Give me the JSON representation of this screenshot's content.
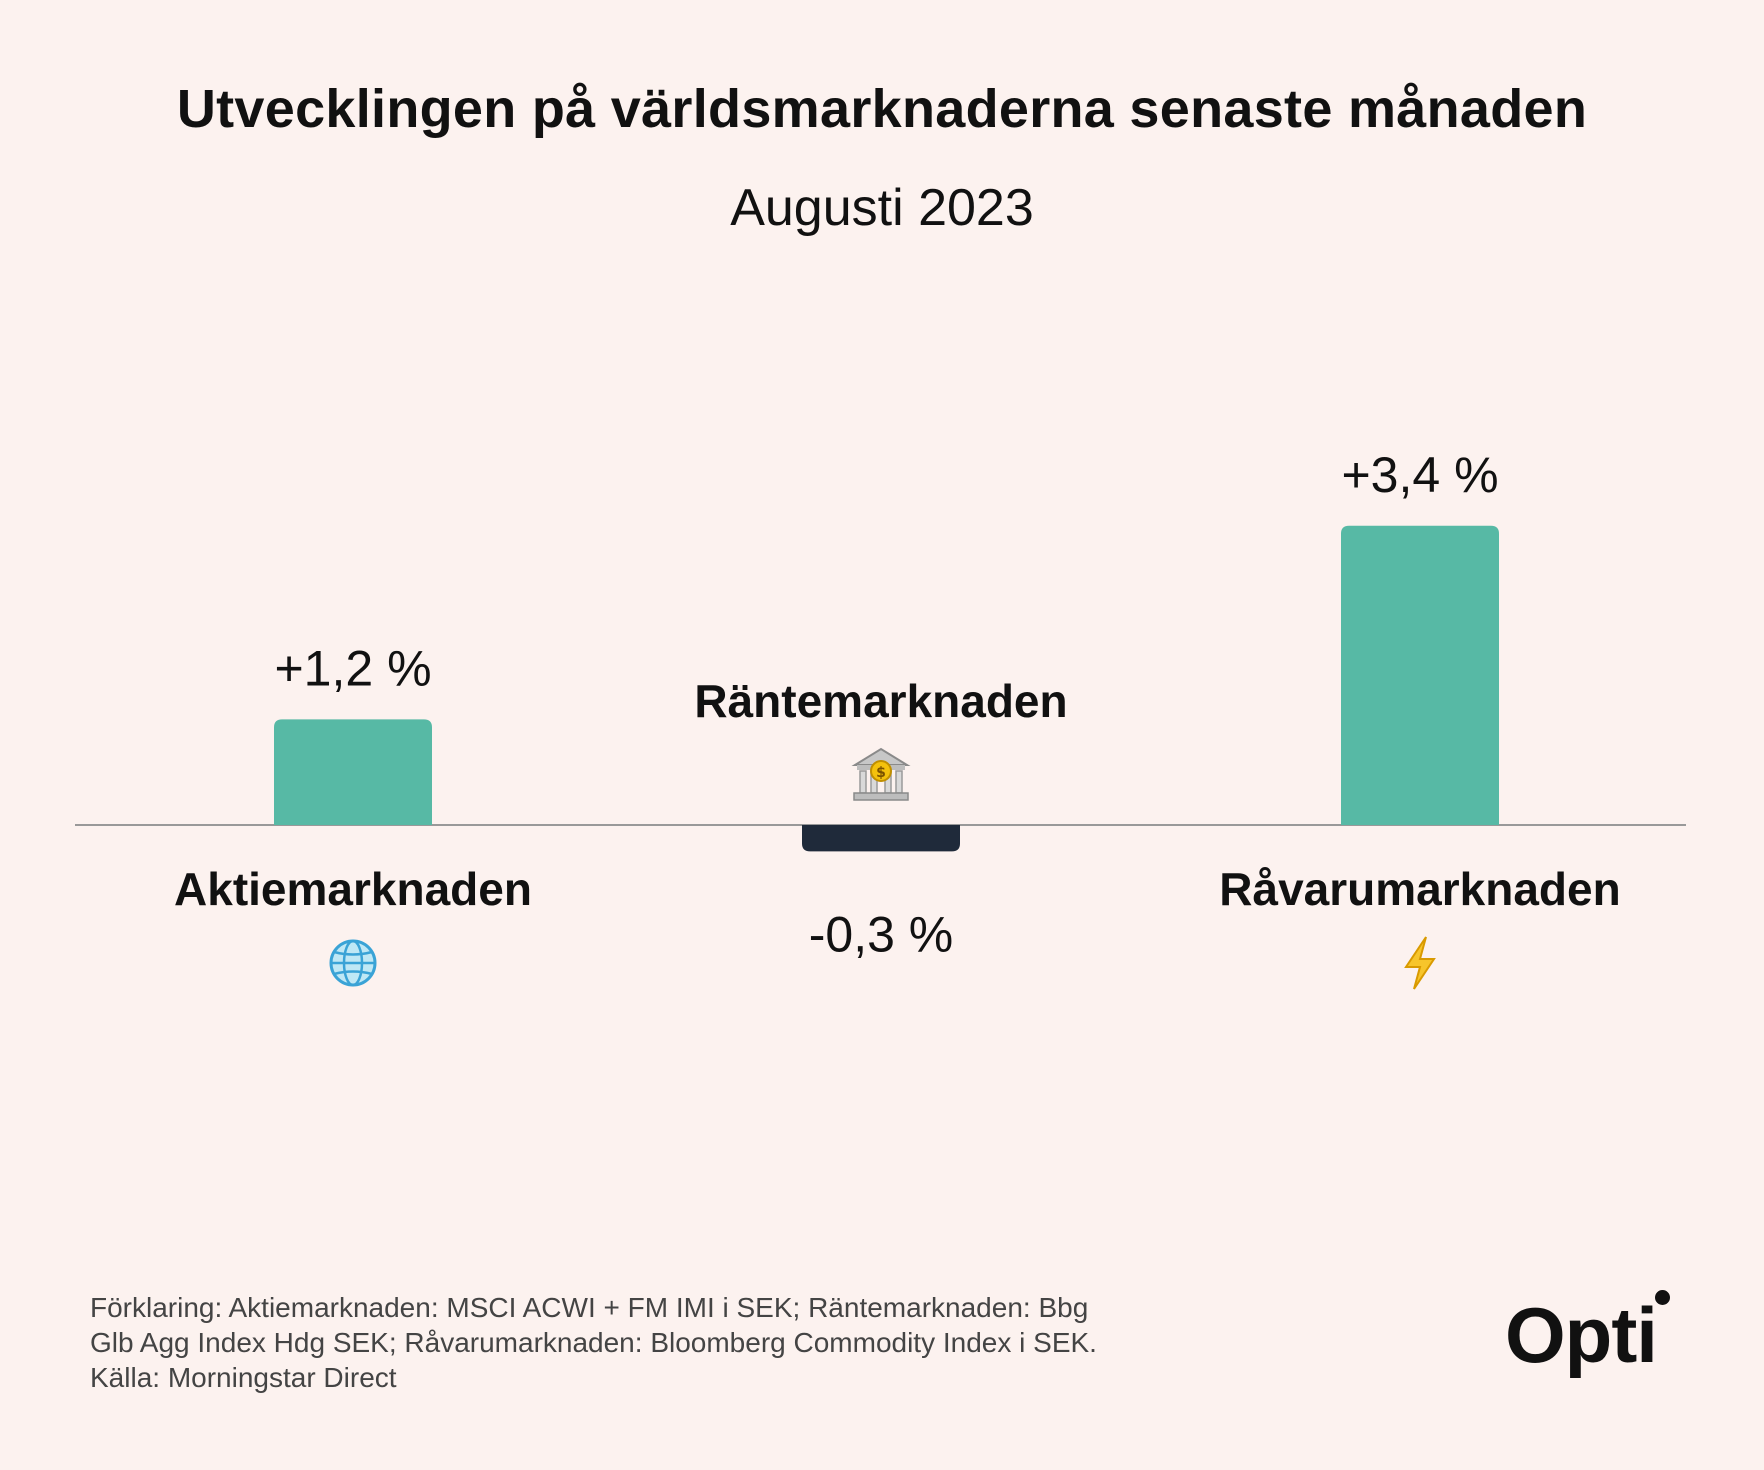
{
  "chart_data": {
    "type": "bar",
    "title": "Utvecklingen på världsmarknaderna senaste månaden",
    "subtitle": "Augusti 2023",
    "categories": [
      "Aktiemarknaden",
      "Räntemarknaden",
      "Råvarumarknaden"
    ],
    "values": [
      1.2,
      -0.3,
      3.4
    ],
    "value_labels": [
      "+1,2 %",
      "-0,3 %",
      "+3,4 %"
    ],
    "category_icons": [
      "globe-icon",
      "bank-icon",
      "lightning-icon"
    ],
    "colors": {
      "positive": "#57b9a5",
      "negative": "#1f2a3a",
      "axis": "#999999"
    },
    "grid": false,
    "legend": "none"
  },
  "footnote": {
    "lines": [
      "Förklaring: Aktiemarknaden: MSCI ACWI + FM IMI i SEK; Räntemarknaden: Bbg",
      "Glb Agg Index Hdg SEK; Råvarumarknaden: Bloomberg Commodity Index i SEK.",
      "Källa: Morningstar Direct"
    ]
  },
  "logo": {
    "text": "Opti"
  }
}
